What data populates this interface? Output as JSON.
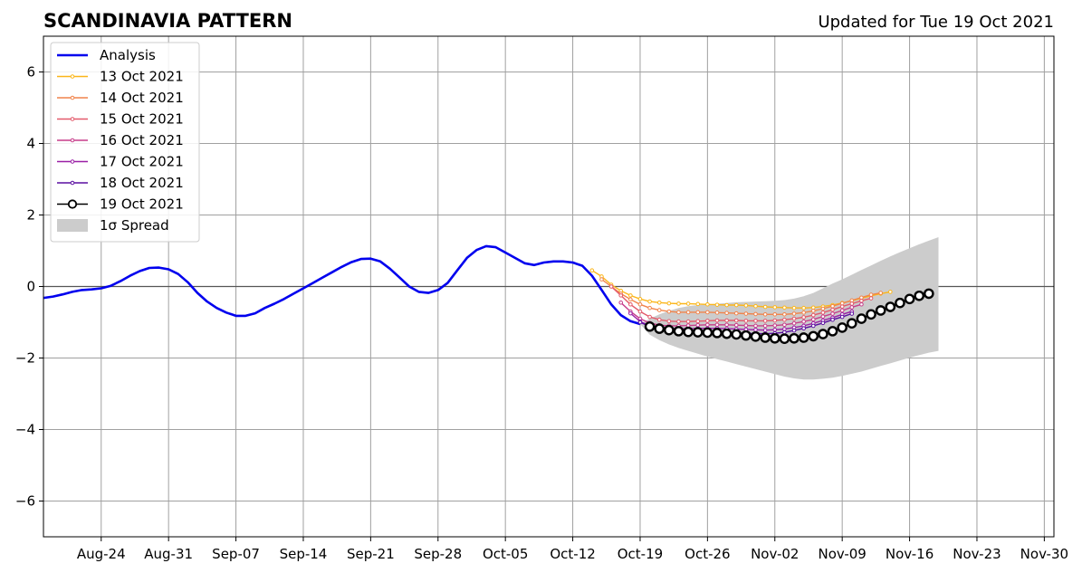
{
  "header": {
    "title": "SCANDINAVIA PATTERN",
    "subtitle": "Updated for Tue 19 Oct 2021"
  },
  "chart_data": {
    "type": "line",
    "x_axis": {
      "type": "date",
      "range": [
        "2021-08-18",
        "2021-12-01"
      ],
      "tick_labels": [
        "Aug-24",
        "Aug-31",
        "Sep-07",
        "Sep-14",
        "Sep-21",
        "Sep-28",
        "Oct-05",
        "Oct-12",
        "Oct-19",
        "Oct-26",
        "Nov-02",
        "Nov-09",
        "Nov-16",
        "Nov-23",
        "Nov-30"
      ],
      "tick_dates": [
        "2021-08-24",
        "2021-08-31",
        "2021-09-07",
        "2021-09-14",
        "2021-09-21",
        "2021-09-28",
        "2021-10-05",
        "2021-10-12",
        "2021-10-19",
        "2021-10-26",
        "2021-11-02",
        "2021-11-09",
        "2021-11-16",
        "2021-11-23",
        "2021-11-30"
      ]
    },
    "y_axis": {
      "range": [
        -7,
        7
      ],
      "ticks": [
        -6,
        -4,
        -2,
        0,
        2,
        4,
        6
      ],
      "tick_labels": [
        "−6",
        "−4",
        "−2",
        "0",
        "2",
        "4",
        "6"
      ]
    },
    "grid": true,
    "legend": {
      "placement": "upper-left"
    },
    "series": [
      {
        "name": "Analysis",
        "color": "#0000ee",
        "style": "line",
        "points": [
          [
            "2021-08-18",
            -0.32
          ],
          [
            "2021-08-19",
            -0.28
          ],
          [
            "2021-08-20",
            -0.22
          ],
          [
            "2021-08-21",
            -0.15
          ],
          [
            "2021-08-22",
            -0.1
          ],
          [
            "2021-08-23",
            -0.08
          ],
          [
            "2021-08-24",
            -0.05
          ],
          [
            "2021-08-25",
            0.02
          ],
          [
            "2021-08-26",
            0.15
          ],
          [
            "2021-08-27",
            0.3
          ],
          [
            "2021-08-28",
            0.43
          ],
          [
            "2021-08-29",
            0.52
          ],
          [
            "2021-08-30",
            0.53
          ],
          [
            "2021-08-31",
            0.48
          ],
          [
            "2021-09-01",
            0.35
          ],
          [
            "2021-09-02",
            0.12
          ],
          [
            "2021-09-03",
            -0.18
          ],
          [
            "2021-09-04",
            -0.42
          ],
          [
            "2021-09-05",
            -0.6
          ],
          [
            "2021-09-06",
            -0.73
          ],
          [
            "2021-09-07",
            -0.82
          ],
          [
            "2021-09-08",
            -0.82
          ],
          [
            "2021-09-09",
            -0.75
          ],
          [
            "2021-09-10",
            -0.6
          ],
          [
            "2021-09-11",
            -0.48
          ],
          [
            "2021-09-12",
            -0.35
          ],
          [
            "2021-09-13",
            -0.2
          ],
          [
            "2021-09-14",
            -0.05
          ],
          [
            "2021-09-15",
            0.1
          ],
          [
            "2021-09-16",
            0.25
          ],
          [
            "2021-09-17",
            0.4
          ],
          [
            "2021-09-18",
            0.55
          ],
          [
            "2021-09-19",
            0.68
          ],
          [
            "2021-09-20",
            0.77
          ],
          [
            "2021-09-21",
            0.78
          ],
          [
            "2021-09-22",
            0.7
          ],
          [
            "2021-09-23",
            0.5
          ],
          [
            "2021-09-24",
            0.25
          ],
          [
            "2021-09-25",
            0.0
          ],
          [
            "2021-09-26",
            -0.15
          ],
          [
            "2021-09-27",
            -0.18
          ],
          [
            "2021-09-28",
            -0.1
          ],
          [
            "2021-09-29",
            0.1
          ],
          [
            "2021-09-30",
            0.45
          ],
          [
            "2021-10-01",
            0.8
          ],
          [
            "2021-10-02",
            1.02
          ],
          [
            "2021-10-03",
            1.13
          ],
          [
            "2021-10-04",
            1.1
          ],
          [
            "2021-10-05",
            0.95
          ],
          [
            "2021-10-06",
            0.8
          ],
          [
            "2021-10-07",
            0.65
          ],
          [
            "2021-10-08",
            0.6
          ],
          [
            "2021-10-09",
            0.67
          ],
          [
            "2021-10-10",
            0.7
          ],
          [
            "2021-10-11",
            0.7
          ],
          [
            "2021-10-12",
            0.67
          ],
          [
            "2021-10-13",
            0.58
          ],
          [
            "2021-10-14",
            0.3
          ],
          [
            "2021-10-15",
            -0.1
          ],
          [
            "2021-10-16",
            -0.5
          ],
          [
            "2021-10-17",
            -0.8
          ],
          [
            "2021-10-18",
            -0.97
          ],
          [
            "2021-10-19",
            -1.05
          ]
        ]
      },
      {
        "name": "13 Oct 2021",
        "color": "#fbb61a",
        "style": "forecast",
        "start": "2021-10-14",
        "values": [
          0.45,
          0.28,
          0.05,
          -0.12,
          -0.25,
          -0.35,
          -0.42,
          -0.45,
          -0.47,
          -0.48,
          -0.48,
          -0.49,
          -0.5,
          -0.51,
          -0.52,
          -0.52,
          -0.53,
          -0.55,
          -0.57,
          -0.58,
          -0.59,
          -0.6,
          -0.6,
          -0.59,
          -0.56,
          -0.52,
          -0.46,
          -0.4,
          -0.33,
          -0.26,
          -0.2,
          -0.15
        ]
      },
      {
        "name": "14 Oct 2021",
        "color": "#f1844b",
        "style": "forecast",
        "start": "2021-10-15",
        "values": [
          0.2,
          0.0,
          -0.2,
          -0.36,
          -0.5,
          -0.6,
          -0.66,
          -0.7,
          -0.72,
          -0.72,
          -0.72,
          -0.72,
          -0.73,
          -0.74,
          -0.75,
          -0.76,
          -0.77,
          -0.78,
          -0.78,
          -0.78,
          -0.76,
          -0.73,
          -0.68,
          -0.62,
          -0.55,
          -0.47,
          -0.39,
          -0.31,
          -0.23,
          -0.18
        ]
      },
      {
        "name": "15 Oct 2021",
        "color": "#e3596a",
        "style": "forecast",
        "start": "2021-10-16",
        "values": [
          0.0,
          -0.25,
          -0.5,
          -0.7,
          -0.85,
          -0.93,
          -0.97,
          -0.98,
          -0.98,
          -0.97,
          -0.96,
          -0.95,
          -0.95,
          -0.95,
          -0.96,
          -0.96,
          -0.96,
          -0.95,
          -0.93,
          -0.9,
          -0.86,
          -0.8,
          -0.73,
          -0.65,
          -0.56,
          -0.48,
          -0.4,
          -0.33
        ]
      },
      {
        "name": "16 Oct 2021",
        "color": "#c73d8a",
        "style": "forecast",
        "start": "2021-10-17",
        "values": [
          -0.45,
          -0.7,
          -0.9,
          -1.02,
          -1.08,
          -1.1,
          -1.1,
          -1.09,
          -1.08,
          -1.07,
          -1.07,
          -1.07,
          -1.08,
          -1.09,
          -1.1,
          -1.1,
          -1.09,
          -1.07,
          -1.03,
          -0.98,
          -0.92,
          -0.84,
          -0.76,
          -0.67,
          -0.58,
          -0.5
        ]
      },
      {
        "name": "17 Oct 2021",
        "color": "#9a1fa6",
        "style": "forecast",
        "start": "2021-10-18",
        "values": [
          -0.75,
          -0.98,
          -1.1,
          -1.15,
          -1.17,
          -1.18,
          -1.18,
          -1.17,
          -1.17,
          -1.17,
          -1.18,
          -1.19,
          -1.2,
          -1.21,
          -1.22,
          -1.21,
          -1.19,
          -1.15,
          -1.1,
          -1.03,
          -0.95,
          -0.87,
          -0.78,
          -0.7
        ]
      },
      {
        "name": "18 Oct 2021",
        "color": "#5a0fa0",
        "style": "forecast",
        "start": "2021-10-19",
        "values": [
          -1.0,
          -1.12,
          -1.2,
          -1.24,
          -1.26,
          -1.27,
          -1.27,
          -1.27,
          -1.28,
          -1.29,
          -1.3,
          -1.31,
          -1.32,
          -1.32,
          -1.31,
          -1.28,
          -1.23,
          -1.17,
          -1.1,
          -1.02,
          -0.93,
          -0.85,
          -0.76
        ]
      },
      {
        "name": "19 Oct 2021",
        "color": "#000000",
        "style": "circles",
        "start": "2021-10-20",
        "values": [
          -1.12,
          -1.18,
          -1.22,
          -1.25,
          -1.27,
          -1.28,
          -1.29,
          -1.3,
          -1.32,
          -1.34,
          -1.37,
          -1.4,
          -1.43,
          -1.45,
          -1.46,
          -1.45,
          -1.43,
          -1.39,
          -1.33,
          -1.25,
          -1.15,
          -1.03,
          -0.9,
          -0.78,
          -0.67,
          -0.57,
          -0.46,
          -0.35,
          -0.26,
          -0.2
        ]
      },
      {
        "name": "1σ Spread",
        "color": "#cccccc",
        "style": "band",
        "start": "2021-10-19",
        "lower": [
          -1.05,
          -1.35,
          -1.5,
          -1.62,
          -1.72,
          -1.8,
          -1.88,
          -1.96,
          -2.03,
          -2.1,
          -2.17,
          -2.24,
          -2.31,
          -2.38,
          -2.45,
          -2.52,
          -2.57,
          -2.6,
          -2.6,
          -2.58,
          -2.55,
          -2.5,
          -2.44,
          -2.38,
          -2.3,
          -2.22,
          -2.15,
          -2.07,
          -1.99,
          -1.92,
          -1.85,
          -1.8
        ],
        "upper": [
          -1.05,
          -0.9,
          -0.78,
          -0.68,
          -0.6,
          -0.55,
          -0.52,
          -0.5,
          -0.48,
          -0.46,
          -0.44,
          -0.43,
          -0.42,
          -0.41,
          -0.4,
          -0.38,
          -0.34,
          -0.27,
          -0.18,
          -0.05,
          0.08,
          0.2,
          0.33,
          0.46,
          0.59,
          0.72,
          0.84,
          0.96,
          1.07,
          1.18,
          1.28,
          1.38
        ]
      }
    ]
  }
}
